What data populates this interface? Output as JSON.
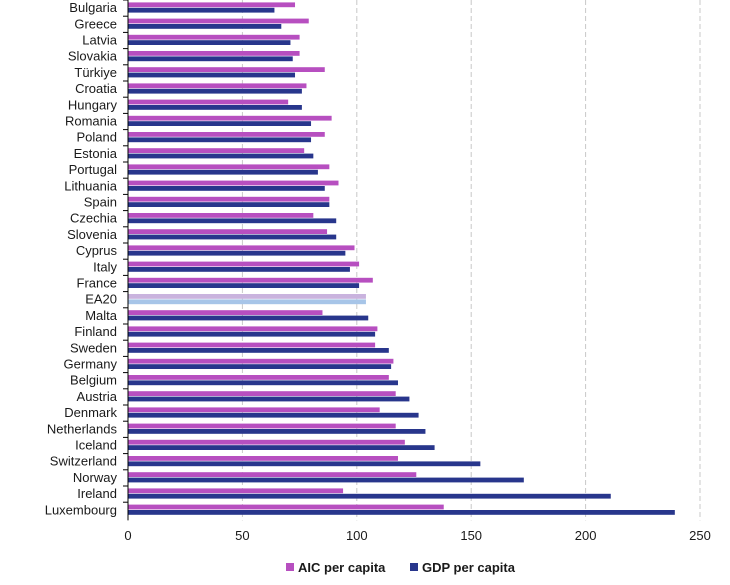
{
  "chart_data": {
    "type": "bar",
    "orientation": "horizontal",
    "categories": [
      "Bulgaria",
      "Greece",
      "Latvia",
      "Slovakia",
      "Türkiye",
      "Croatia",
      "Hungary",
      "Romania",
      "Poland",
      "Estonia",
      "Portugal",
      "Lithuania",
      "Spain",
      "Czechia",
      "Slovenia",
      "Cyprus",
      "Italy",
      "France",
      "EA20",
      "Malta",
      "Finland",
      "Sweden",
      "Germany",
      "Belgium",
      "Austria",
      "Denmark",
      "Netherlands",
      "Iceland",
      "Switzerland",
      "Norway",
      "Ireland",
      "Luxembourg"
    ],
    "series": [
      {
        "name": "AIC per capita",
        "color": "#b74fc0",
        "values": [
          73,
          79,
          75,
          75,
          86,
          78,
          70,
          89,
          86,
          77,
          88,
          92,
          88,
          81,
          87,
          99,
          101,
          107,
          104,
          85,
          109,
          108,
          116,
          114,
          117,
          110,
          117,
          121,
          118,
          126,
          94,
          138
        ]
      },
      {
        "name": "GDP per capita",
        "color": "#28368c",
        "values": [
          64,
          67,
          71,
          72,
          73,
          76,
          76,
          80,
          80,
          81,
          83,
          86,
          88,
          91,
          91,
          95,
          97,
          101,
          104,
          105,
          108,
          114,
          115,
          118,
          123,
          127,
          130,
          134,
          154,
          173,
          211,
          239
        ]
      }
    ],
    "highlight_category": "EA20",
    "highlight_colors": [
      "#c9b3de",
      "#a7c5e8"
    ],
    "xlim": [
      0,
      250
    ],
    "xticks": [
      "0",
      "50",
      "100",
      "150",
      "200",
      "250"
    ],
    "grid": true,
    "legend_position": "bottom-center",
    "title": "",
    "xlabel": "",
    "ylabel": ""
  }
}
